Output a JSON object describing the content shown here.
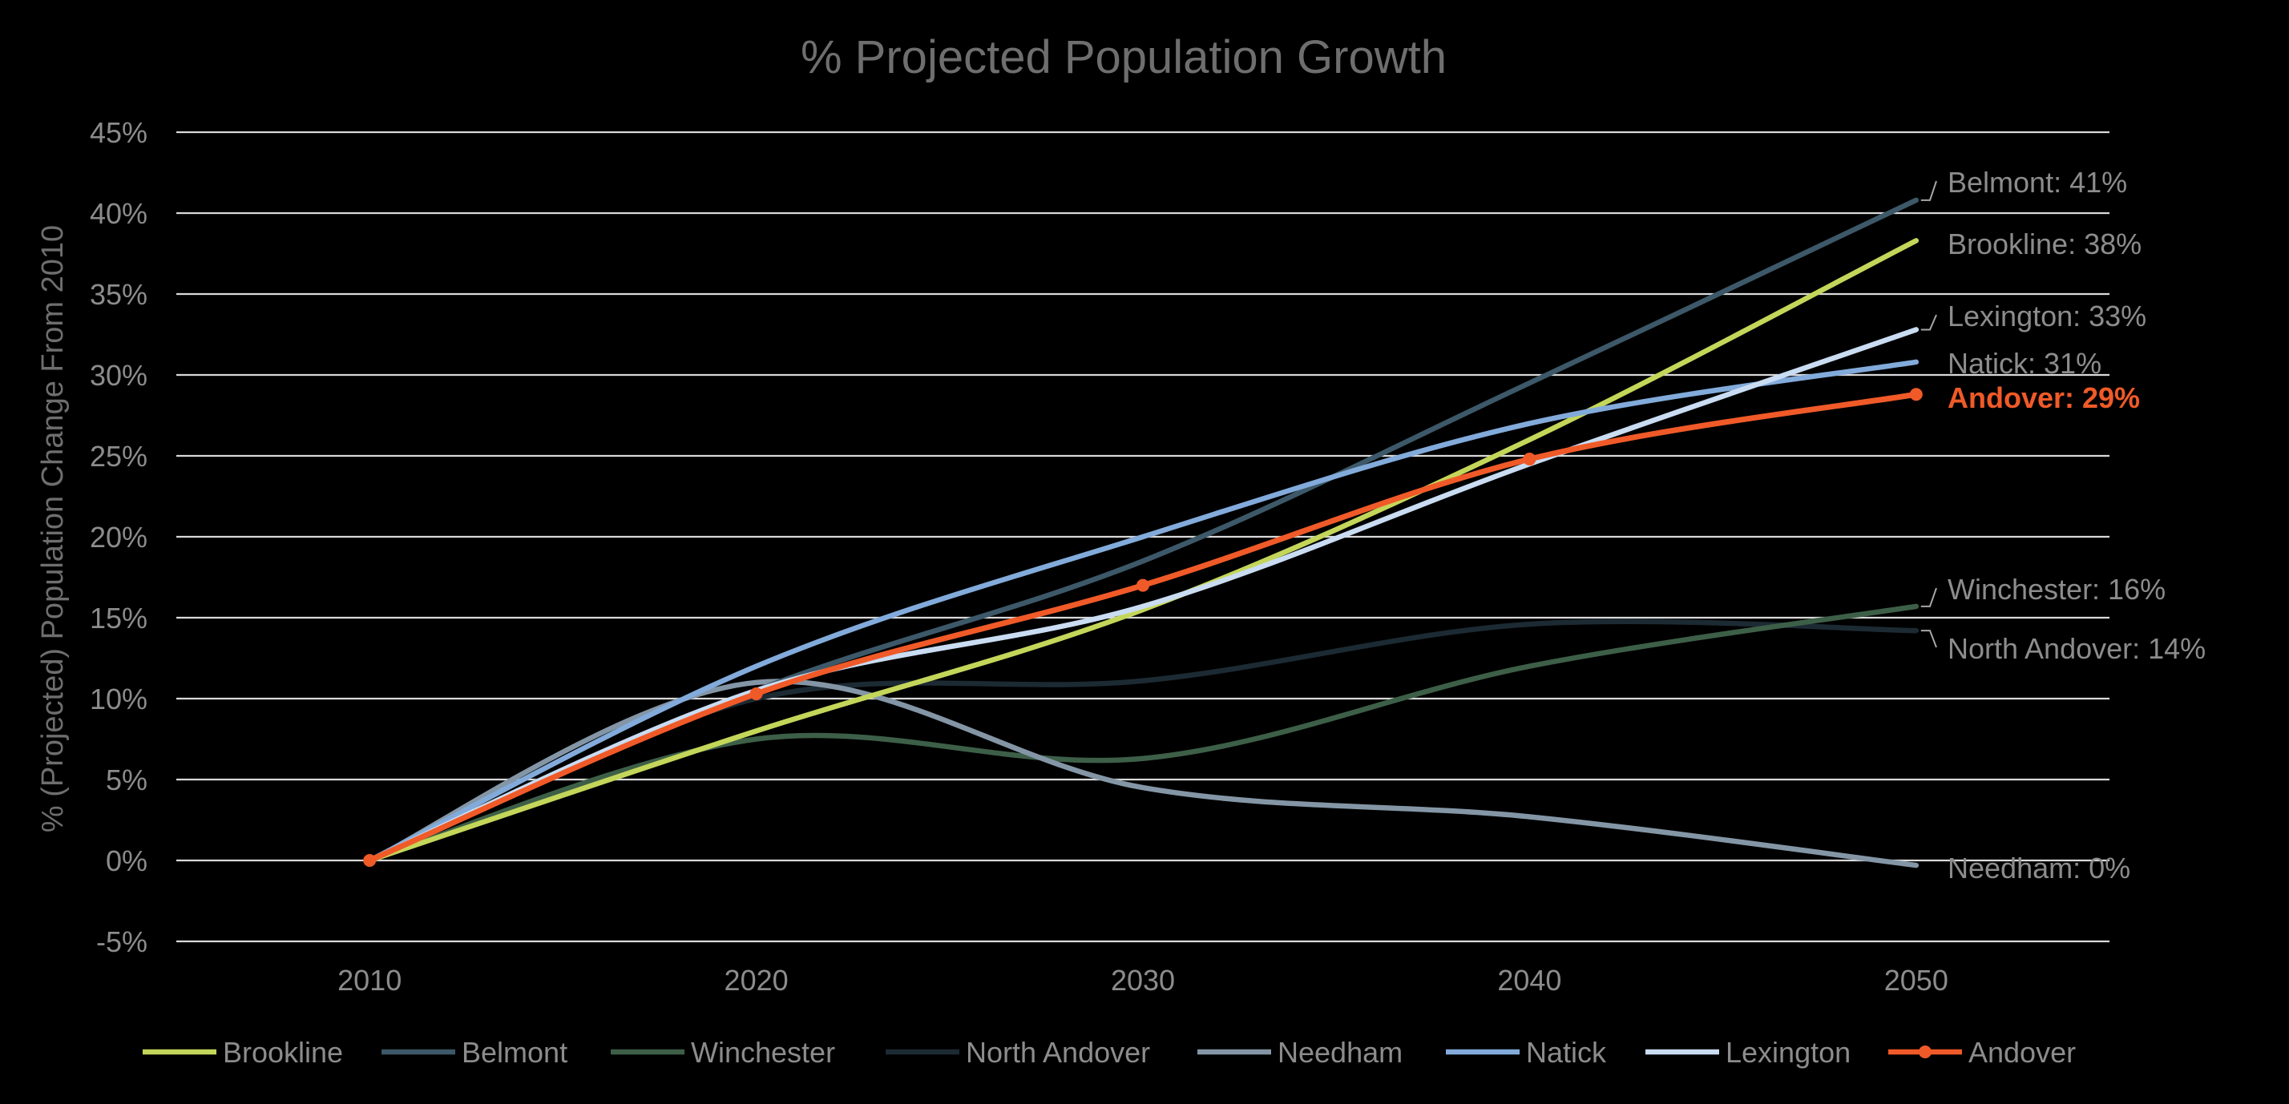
{
  "chart_data": {
    "type": "line",
    "title": "% Projected Population Growth",
    "xlabel": "",
    "ylabel": "% (Projected) Population Change From 2010",
    "x": [
      2010,
      2020,
      2030,
      2040,
      2050
    ],
    "x_ticks": [
      "2010",
      "2020",
      "2030",
      "2040",
      "2050"
    ],
    "xlim": [
      2005,
      2055
    ],
    "ylim": [
      -5,
      45
    ],
    "y_ticks": [
      -5,
      0,
      5,
      10,
      15,
      20,
      25,
      30,
      35,
      40,
      45
    ],
    "y_tick_labels": [
      "-5%",
      "0%",
      "5%",
      "10%",
      "15%",
      "20%",
      "25%",
      "30%",
      "35%",
      "40%",
      "45%"
    ],
    "grid": true,
    "legend_position": "bottom",
    "series": [
      {
        "name": "Brookline",
        "values": [
          0,
          8,
          15.5,
          26,
          38.3
        ],
        "color": "#c4d65a",
        "end_label": "Brookline: 38%"
      },
      {
        "name": "Belmont",
        "values": [
          0,
          10.5,
          18.5,
          29.5,
          40.8
        ],
        "color": "#3d5868",
        "end_label": "Belmont: 41%"
      },
      {
        "name": "Winchester",
        "values": [
          0,
          7.5,
          6.3,
          12,
          15.7
        ],
        "color": "#3d5f48",
        "end_label": "Winchester: 16%"
      },
      {
        "name": "North Andover",
        "values": [
          0,
          10,
          11.1,
          14.6,
          14.2
        ],
        "color": "#1c2a33",
        "end_label": "North Andover: 14%"
      },
      {
        "name": "Needham",
        "values": [
          0,
          11,
          4.5,
          2.7,
          -0.3
        ],
        "color": "#8496a6",
        "end_label": "Needham: 0%"
      },
      {
        "name": "Natick",
        "values": [
          0,
          12,
          20,
          27,
          30.8
        ],
        "color": "#82abdb",
        "end_label": "Natick: 31%"
      },
      {
        "name": "Lexington",
        "values": [
          0,
          10.5,
          15.7,
          24.5,
          32.8
        ],
        "color": "#c9dcf2",
        "end_label": "Lexington: 33%"
      },
      {
        "name": "Andover",
        "values": [
          0,
          10.3,
          17,
          24.8,
          28.8
        ],
        "color": "#f05a28",
        "end_label": "Andover: 29%",
        "markers": true,
        "highlight": true
      }
    ]
  }
}
